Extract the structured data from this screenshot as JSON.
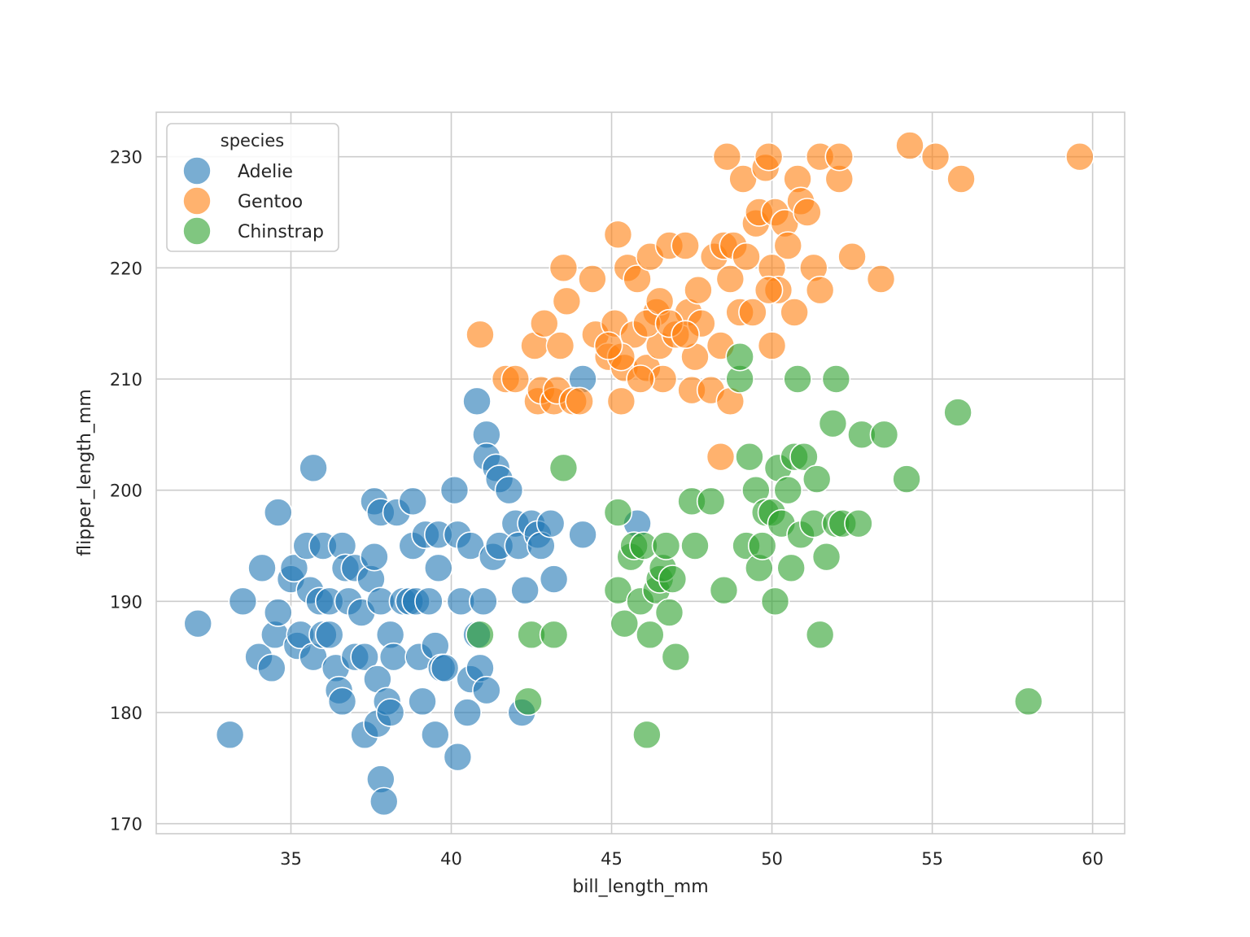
{
  "chart_data": {
    "type": "scatter",
    "title": "",
    "xlabel": "bill_length_mm",
    "ylabel": "flipper_length_mm",
    "xlim": [
      30.8,
      61.0
    ],
    "ylim": [
      169.1,
      234.0
    ],
    "xticks": [
      35,
      40,
      45,
      50,
      55,
      60
    ],
    "yticks": [
      170,
      180,
      190,
      200,
      210,
      220,
      230
    ],
    "grid": true,
    "legend": {
      "title": "species",
      "location": "top-left"
    },
    "series": [
      {
        "name": "Adelie",
        "color": "#1f77b4",
        "points": [
          [
            32.1,
            188
          ],
          [
            33.1,
            178
          ],
          [
            33.5,
            190
          ],
          [
            34.0,
            185
          ],
          [
            34.1,
            193
          ],
          [
            34.4,
            184
          ],
          [
            34.5,
            187
          ],
          [
            34.6,
            198
          ],
          [
            34.6,
            189
          ],
          [
            35.0,
            192
          ],
          [
            35.1,
            193
          ],
          [
            35.2,
            186
          ],
          [
            35.3,
            187
          ],
          [
            35.5,
            195
          ],
          [
            35.6,
            191
          ],
          [
            35.7,
            202
          ],
          [
            35.7,
            185
          ],
          [
            35.9,
            190
          ],
          [
            36.0,
            187
          ],
          [
            36.0,
            195
          ],
          [
            36.2,
            187
          ],
          [
            36.2,
            190
          ],
          [
            36.4,
            184
          ],
          [
            36.5,
            182
          ],
          [
            36.6,
            181
          ],
          [
            36.6,
            195
          ],
          [
            36.7,
            193
          ],
          [
            36.8,
            190
          ],
          [
            37.0,
            185
          ],
          [
            37.0,
            193
          ],
          [
            37.2,
            189
          ],
          [
            37.3,
            178
          ],
          [
            37.3,
            185
          ],
          [
            37.5,
            192
          ],
          [
            37.6,
            194
          ],
          [
            37.6,
            199
          ],
          [
            37.7,
            179
          ],
          [
            37.7,
            183
          ],
          [
            37.8,
            174
          ],
          [
            37.8,
            198
          ],
          [
            37.8,
            190
          ],
          [
            37.9,
            172
          ],
          [
            38.0,
            181
          ],
          [
            38.1,
            180
          ],
          [
            38.1,
            187
          ],
          [
            38.2,
            185
          ],
          [
            38.3,
            198
          ],
          [
            38.5,
            190
          ],
          [
            38.7,
            190
          ],
          [
            38.8,
            195
          ],
          [
            38.8,
            199
          ],
          [
            38.9,
            190
          ],
          [
            39.0,
            185
          ],
          [
            39.1,
            181
          ],
          [
            39.2,
            196
          ],
          [
            39.3,
            190
          ],
          [
            39.5,
            178
          ],
          [
            39.5,
            186
          ],
          [
            39.6,
            196
          ],
          [
            39.6,
            193
          ],
          [
            39.7,
            184
          ],
          [
            39.8,
            184
          ],
          [
            40.1,
            200
          ],
          [
            40.2,
            176
          ],
          [
            40.2,
            196
          ],
          [
            40.3,
            190
          ],
          [
            40.5,
            180
          ],
          [
            40.6,
            183
          ],
          [
            40.6,
            195
          ],
          [
            40.8,
            187
          ],
          [
            40.8,
            208
          ],
          [
            40.9,
            184
          ],
          [
            41.0,
            190
          ],
          [
            41.1,
            205
          ],
          [
            41.1,
            182
          ],
          [
            41.1,
            203
          ],
          [
            41.3,
            194
          ],
          [
            41.4,
            202
          ],
          [
            41.5,
            201
          ],
          [
            41.5,
            195
          ],
          [
            41.8,
            200
          ],
          [
            42.0,
            197
          ],
          [
            42.1,
            195
          ],
          [
            42.2,
            180
          ],
          [
            42.3,
            191
          ],
          [
            42.5,
            197
          ],
          [
            42.7,
            196
          ],
          [
            42.8,
            195
          ],
          [
            43.1,
            197
          ],
          [
            43.2,
            192
          ],
          [
            44.1,
            196
          ],
          [
            44.1,
            210
          ],
          [
            45.8,
            197
          ]
        ]
      },
      {
        "name": "Gentoo",
        "color": "#ff7f0e",
        "points": [
          [
            40.9,
            214
          ],
          [
            41.7,
            210
          ],
          [
            42.0,
            210
          ],
          [
            42.6,
            213
          ],
          [
            42.7,
            208
          ],
          [
            42.8,
            209
          ],
          [
            42.9,
            215
          ],
          [
            43.2,
            208
          ],
          [
            43.3,
            209
          ],
          [
            43.4,
            213
          ],
          [
            43.5,
            220
          ],
          [
            43.6,
            217
          ],
          [
            43.8,
            208
          ],
          [
            44.0,
            208
          ],
          [
            44.4,
            219
          ],
          [
            44.5,
            214
          ],
          [
            44.9,
            212
          ],
          [
            45.1,
            215
          ],
          [
            45.2,
            223
          ],
          [
            45.3,
            208
          ],
          [
            45.4,
            211
          ],
          [
            45.5,
            220
          ],
          [
            45.7,
            214
          ],
          [
            45.8,
            219
          ],
          [
            46.1,
            211
          ],
          [
            46.2,
            221
          ],
          [
            46.4,
            216
          ],
          [
            46.5,
            213
          ],
          [
            46.6,
            210
          ],
          [
            46.8,
            222
          ],
          [
            47.0,
            214
          ],
          [
            47.3,
            222
          ],
          [
            47.4,
            216
          ],
          [
            47.5,
            209
          ],
          [
            47.6,
            212
          ],
          [
            47.7,
            218
          ],
          [
            48.1,
            209
          ],
          [
            48.2,
            221
          ],
          [
            48.4,
            213
          ],
          [
            48.5,
            222
          ],
          [
            48.6,
            230
          ],
          [
            48.7,
            219
          ],
          [
            48.8,
            222
          ],
          [
            49.0,
            216
          ],
          [
            49.1,
            228
          ],
          [
            49.2,
            221
          ],
          [
            49.4,
            216
          ],
          [
            49.5,
            224
          ],
          [
            49.6,
            225
          ],
          [
            49.8,
            229
          ],
          [
            49.9,
            230
          ],
          [
            50.0,
            213
          ],
          [
            50.0,
            220
          ],
          [
            50.1,
            225
          ],
          [
            50.2,
            218
          ],
          [
            50.4,
            224
          ],
          [
            50.5,
            222
          ],
          [
            50.7,
            216
          ],
          [
            50.8,
            228
          ],
          [
            50.9,
            226
          ],
          [
            51.1,
            225
          ],
          [
            51.3,
            220
          ],
          [
            51.5,
            218
          ],
          [
            51.5,
            230
          ],
          [
            52.1,
            228
          ],
          [
            52.1,
            230
          ],
          [
            52.5,
            221
          ],
          [
            53.4,
            219
          ],
          [
            54.3,
            231
          ],
          [
            55.1,
            230
          ],
          [
            55.9,
            228
          ],
          [
            59.6,
            230
          ],
          [
            48.4,
            203
          ],
          [
            48.7,
            208
          ],
          [
            46.1,
            215
          ],
          [
            45.3,
            212
          ],
          [
            47.8,
            215
          ],
          [
            46.5,
            217
          ],
          [
            44.9,
            213
          ],
          [
            49.9,
            218
          ],
          [
            45.9,
            210
          ],
          [
            46.8,
            215
          ],
          [
            47.3,
            214
          ]
        ]
      },
      {
        "name": "Chinstrap",
        "color": "#2ca02c",
        "points": [
          [
            40.9,
            187
          ],
          [
            42.4,
            181
          ],
          [
            42.5,
            187
          ],
          [
            43.2,
            187
          ],
          [
            43.5,
            202
          ],
          [
            45.2,
            198
          ],
          [
            45.2,
            191
          ],
          [
            45.4,
            188
          ],
          [
            45.6,
            194
          ],
          [
            45.7,
            195
          ],
          [
            45.9,
            190
          ],
          [
            46.0,
            195
          ],
          [
            46.1,
            178
          ],
          [
            46.2,
            187
          ],
          [
            46.4,
            191
          ],
          [
            46.5,
            192
          ],
          [
            46.6,
            193
          ],
          [
            46.7,
            195
          ],
          [
            46.8,
            189
          ],
          [
            46.9,
            192
          ],
          [
            47.0,
            185
          ],
          [
            47.5,
            199
          ],
          [
            47.6,
            195
          ],
          [
            48.1,
            199
          ],
          [
            48.5,
            191
          ],
          [
            49.0,
            210
          ],
          [
            49.0,
            212
          ],
          [
            49.2,
            195
          ],
          [
            49.3,
            203
          ],
          [
            49.5,
            200
          ],
          [
            49.6,
            193
          ],
          [
            49.7,
            195
          ],
          [
            49.8,
            198
          ],
          [
            50.0,
            198
          ],
          [
            50.1,
            190
          ],
          [
            50.2,
            202
          ],
          [
            50.3,
            197
          ],
          [
            50.5,
            200
          ],
          [
            50.6,
            193
          ],
          [
            50.7,
            203
          ],
          [
            50.8,
            210
          ],
          [
            50.9,
            196
          ],
          [
            51.0,
            203
          ],
          [
            51.3,
            197
          ],
          [
            51.4,
            201
          ],
          [
            51.5,
            187
          ],
          [
            51.7,
            194
          ],
          [
            51.9,
            206
          ],
          [
            52.0,
            197
          ],
          [
            52.0,
            210
          ],
          [
            52.2,
            197
          ],
          [
            52.7,
            197
          ],
          [
            52.8,
            205
          ],
          [
            53.5,
            205
          ],
          [
            54.2,
            201
          ],
          [
            55.8,
            207
          ],
          [
            58.0,
            181
          ]
        ]
      }
    ]
  }
}
